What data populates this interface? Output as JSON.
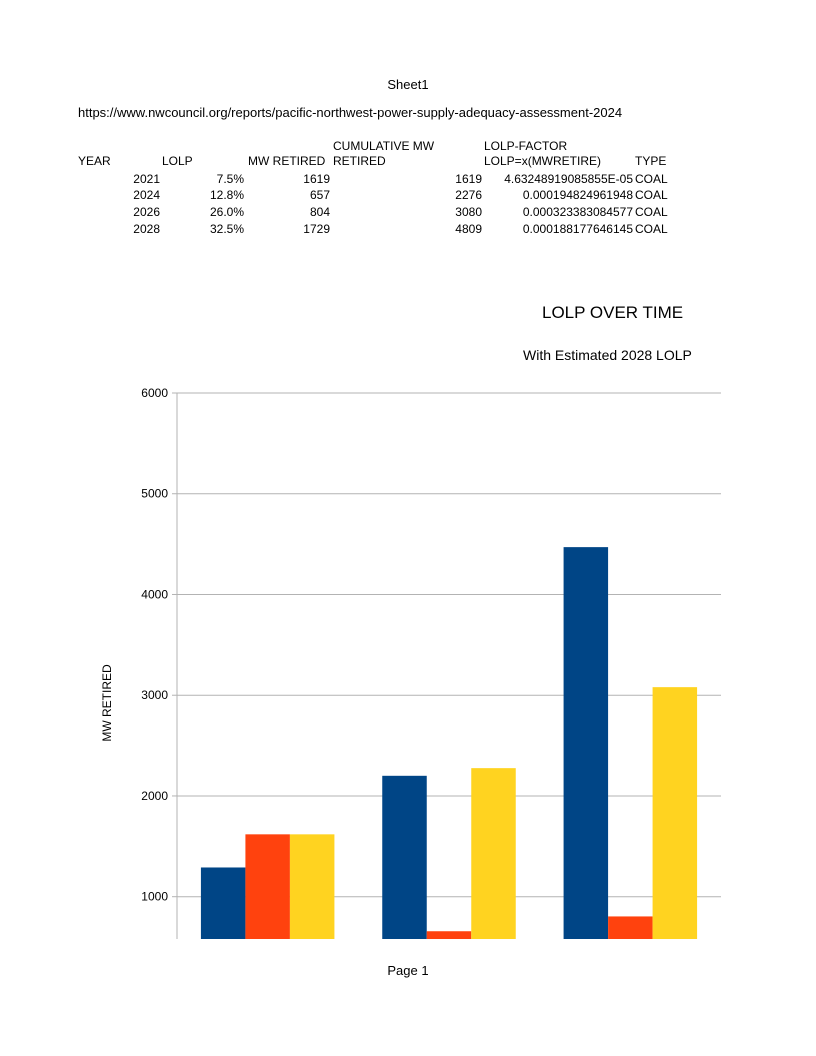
{
  "sheet_title": "Sheet1",
  "source_url": "https://www.nwcouncil.org/reports/pacific-northwest-power-supply-adequacy-assessment-2024",
  "table": {
    "headers": {
      "year": "YEAR",
      "lolp": "LOLP",
      "mw_retired": "MW RETIRED",
      "cumulative_line1": "CUMULATIVE MW",
      "cumulative_line2": "RETIRED",
      "factor_line1": "LOLP-FACTOR",
      "factor_line2": "LOLP=x(MWRETIRE)",
      "type": "TYPE"
    },
    "rows": [
      {
        "year": "2021",
        "lolp": "7.5%",
        "mw_retired": "1619",
        "cumulative": "1619",
        "factor": "4.63248919085855E-05",
        "type": "COAL"
      },
      {
        "year": "2024",
        "lolp": "12.8%",
        "mw_retired": "657",
        "cumulative": "2276",
        "factor": "0.000194824961948",
        "type": "COAL"
      },
      {
        "year": "2026",
        "lolp": "26.0%",
        "mw_retired": "804",
        "cumulative": "3080",
        "factor": "0.000323383084577",
        "type": "COAL"
      },
      {
        "year": "2028",
        "lolp": "32.5%",
        "mw_retired": "1729",
        "cumulative": "4809",
        "factor": "0.000188177646145",
        "type": "COAL"
      }
    ]
  },
  "chart_data": {
    "type": "bar",
    "title": "LOLP OVER TIME",
    "subtitle": "With Estimated 2028 LOLP",
    "xlabel": "",
    "ylabel": "MW RETIRED",
    "ylim": [
      580,
      6000
    ],
    "yticks": [
      1000,
      2000,
      3000,
      4000,
      5000,
      6000
    ],
    "grid": true,
    "categories": [
      "",
      "",
      ""
    ],
    "series": [
      {
        "color": "#004586",
        "values": [
          1290,
          2200,
          4470
        ]
      },
      {
        "color": "#ff420e",
        "values": [
          1619,
          657,
          804
        ]
      },
      {
        "color": "#ffd320",
        "values": [
          1619,
          2276,
          3080
        ]
      }
    ]
  },
  "footer": "Page 1"
}
